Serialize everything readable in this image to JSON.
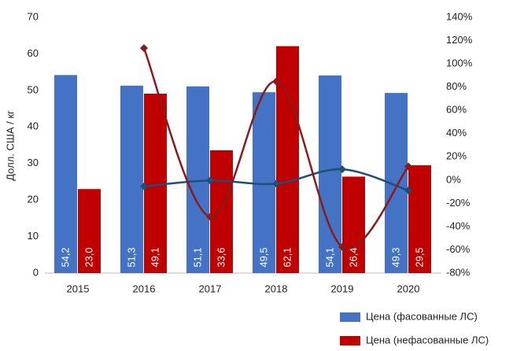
{
  "chart_data": {
    "type": "bar",
    "categories": [
      "2015",
      "2016",
      "2017",
      "2018",
      "2019",
      "2020"
    ],
    "y_label": "Долл. США / кг",
    "ylim": [
      0,
      70
    ],
    "yticks": [
      0,
      10,
      20,
      30,
      40,
      50,
      60,
      70
    ],
    "y2lim": [
      -80,
      140
    ],
    "y2ticks": [
      {
        "value": -80,
        "label": "-80%"
      },
      {
        "value": -60,
        "label": "-60%"
      },
      {
        "value": -40,
        "label": "-40%"
      },
      {
        "value": -20,
        "label": "-20%"
      },
      {
        "value": 0,
        "label": "0%"
      },
      {
        "value": 20,
        "label": "20%"
      },
      {
        "value": 40,
        "label": "40%"
      },
      {
        "value": 60,
        "label": "60%"
      },
      {
        "value": 80,
        "label": "80%"
      },
      {
        "value": 100,
        "label": "100%"
      },
      {
        "value": 120,
        "label": "120%"
      },
      {
        "value": 140,
        "label": "140%"
      }
    ],
    "grid": false,
    "legend": "bottom-right",
    "series": [
      {
        "name": "Цена (фасованные ЛС)",
        "color": "#4472c4",
        "values": [
          54.2,
          51.3,
          51.1,
          49.5,
          54.1,
          49.3
        ],
        "value_labels": [
          "54,2",
          "51,3",
          "51,1",
          "49,5",
          "54,1",
          "49,3"
        ]
      },
      {
        "name": "Цена (нефасованные ЛС)",
        "color": "#c00000",
        "values": [
          23.0,
          49.1,
          33.6,
          62.1,
          26.4,
          29.5
        ],
        "value_labels": [
          "23,0",
          "49,1",
          "33,6",
          "62,1",
          "26,4",
          "29,5"
        ]
      },
      {
        "type": "line",
        "axis": "y2",
        "color": "#1f4e79",
        "values": [
          null,
          -5.4,
          -0.4,
          -3.1,
          9.3,
          -8.9
        ]
      },
      {
        "type": "line",
        "axis": "y2",
        "color": "#8b1a1a",
        "values": [
          null,
          113.5,
          -31.6,
          84.8,
          -57.5,
          11.7
        ]
      }
    ]
  }
}
